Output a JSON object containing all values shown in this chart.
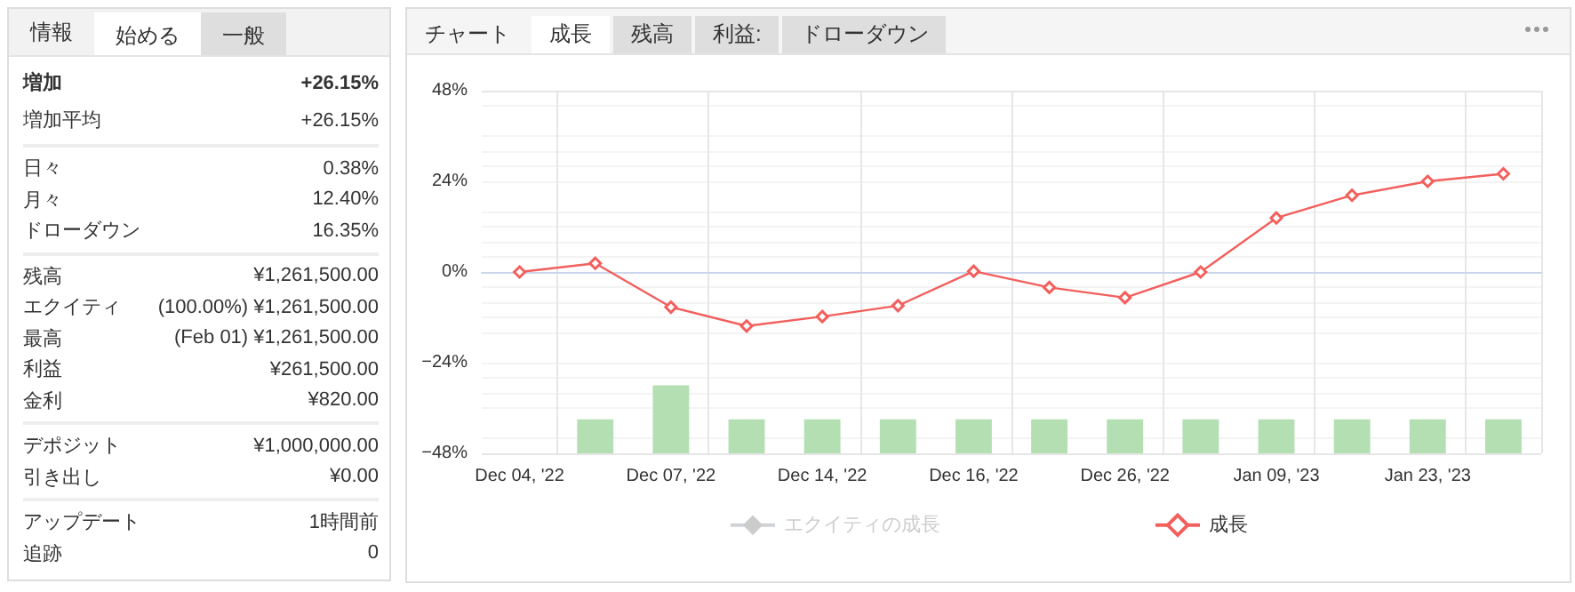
{
  "chart_data": [
    {
      "type": "other",
      "annotations": [
        "情報",
        "始める",
        "一般"
      ],
      "categories": [
        "増加",
        "増加平均",
        "日々",
        "月々",
        "ドローダウン",
        "残高",
        "エクイティ",
        "最高",
        "利益",
        "金利",
        "デポジット",
        "引き出し",
        "アップデート",
        "追跡"
      ],
      "value_labels": [
        "+26.15%",
        "+26.15%",
        "0.38%",
        "12.40%",
        "16.35%",
        "¥1,261,500.00",
        "(100.00%) ¥1,261,500.00",
        "(Feb 01) ¥1,261,500.00",
        "¥261,500.00",
        "¥820.00",
        "¥1,000,000.00",
        "¥0.00",
        "1時間前",
        "0"
      ]
    },
    {
      "type": "line",
      "annotations": [
        "チャート",
        "成長",
        "残高",
        "利益:",
        "ドローダウン"
      ],
      "categories": [
        "Dec 04, '22",
        null,
        "Dec 07, '22",
        null,
        "Dec 14, '22",
        null,
        "Dec 16, '22",
        null,
        "Dec 26, '22",
        null,
        "Jan 09, '23",
        null,
        "Jan 23, '23",
        null
      ],
      "series": [
        {
          "name": "エクイティの成長",
          "values": [
            null,
            null,
            null,
            null,
            null,
            null,
            null,
            null,
            null,
            null,
            null,
            null,
            null,
            null
          ]
        },
        {
          "name": "成長",
          "color": "#f25f5c",
          "values": [
            0,
            2.3,
            -9.3,
            -14.3,
            -11.8,
            -8.9,
            0.2,
            -4.1,
            -6.8,
            0,
            14.3,
            20.3,
            24,
            26
          ]
        },
        {
          "type": "bar",
          "color": "#b3dfb3",
          "base": [
            null,
            -48,
            -48,
            -48,
            -48,
            -48,
            -48,
            -48,
            -48,
            -48,
            -48,
            -48,
            -48,
            -48
          ],
          "values": [
            null,
            9,
            18,
            9,
            9,
            9,
            9,
            9,
            9,
            9,
            9,
            9,
            9,
            9
          ]
        }
      ],
      "ylim": [
        -48,
        48
      ],
      "yticks": [
        {
          "value": -48,
          "label": "−48%"
        },
        {
          "value": -24,
          "label": "−24%"
        },
        {
          "value": 0,
          "label": "0%"
        },
        {
          "value": 24,
          "label": "24%"
        },
        {
          "value": 48,
          "label": "48%"
        }
      ],
      "grid": true,
      "legend": "bottom",
      "marker": "diamond"
    }
  ]
}
